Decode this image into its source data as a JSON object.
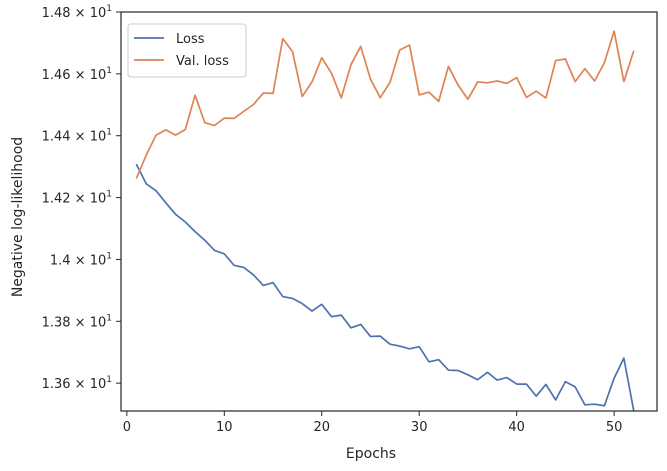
{
  "chart_data": {
    "type": "line",
    "xlabel": "Epochs",
    "ylabel": "Negative log-likelihood",
    "xlim": [
      -0.6,
      54.4
    ],
    "ylim": [
      13.51,
      14.8
    ],
    "x_ticks": [
      0,
      10,
      20,
      30,
      40,
      50
    ],
    "x_tick_labels": [
      "0",
      "10",
      "20",
      "30",
      "40",
      "50"
    ],
    "y_ticks": [
      13.6,
      13.8,
      14.0,
      14.2,
      14.4,
      14.6,
      14.8
    ],
    "y_tick_labels": [
      {
        "mantissa": "1.36",
        "exp": "1"
      },
      {
        "mantissa": "1.38",
        "exp": "1"
      },
      {
        "mantissa": "1.4",
        "exp": "1"
      },
      {
        "mantissa": "1.42",
        "exp": "1"
      },
      {
        "mantissa": "1.44",
        "exp": "1"
      },
      {
        "mantissa": "1.46",
        "exp": "1"
      },
      {
        "mantissa": "1.48",
        "exp": "1"
      }
    ],
    "grid": false,
    "legend_position": "top-left",
    "x": [
      1,
      2,
      3,
      4,
      5,
      6,
      7,
      8,
      9,
      10,
      11,
      12,
      13,
      14,
      15,
      16,
      17,
      18,
      19,
      20,
      21,
      22,
      23,
      24,
      25,
      26,
      27,
      28,
      29,
      30,
      31,
      32,
      33,
      34,
      35,
      36,
      37,
      38,
      39,
      40,
      41,
      42,
      43,
      44,
      45,
      46,
      47,
      48,
      49,
      50,
      51,
      52
    ],
    "series": [
      {
        "name": "Loss",
        "color": "#4c72b0",
        "values": [
          14.306,
          14.244,
          14.222,
          14.183,
          14.146,
          14.121,
          14.09,
          14.062,
          14.029,
          14.018,
          13.981,
          13.974,
          13.95,
          13.916,
          13.925,
          13.88,
          13.874,
          13.857,
          13.833,
          13.855,
          13.815,
          13.82,
          13.779,
          13.79,
          13.751,
          13.752,
          13.726,
          13.72,
          13.711,
          13.718,
          13.669,
          13.676,
          13.642,
          13.641,
          13.627,
          13.611,
          13.635,
          13.61,
          13.618,
          13.597,
          13.597,
          13.558,
          13.596,
          13.546,
          13.605,
          13.588,
          13.53,
          13.532,
          13.527,
          13.616,
          13.681,
          13.513
        ]
      },
      {
        "name": "Val. loss",
        "color": "#dd8452",
        "values": [
          14.264,
          14.338,
          14.402,
          14.419,
          14.402,
          14.42,
          14.531,
          14.442,
          14.433,
          14.457,
          14.456,
          14.479,
          14.501,
          14.538,
          14.537,
          14.714,
          14.672,
          14.527,
          14.574,
          14.652,
          14.602,
          14.522,
          14.63,
          14.689,
          14.583,
          14.523,
          14.572,
          14.677,
          14.693,
          14.532,
          14.541,
          14.511,
          14.624,
          14.563,
          14.518,
          14.574,
          14.571,
          14.577,
          14.569,
          14.588,
          14.524,
          14.544,
          14.522,
          14.643,
          14.648,
          14.575,
          14.617,
          14.577,
          14.636,
          14.738,
          14.575,
          14.673
        ]
      }
    ]
  }
}
